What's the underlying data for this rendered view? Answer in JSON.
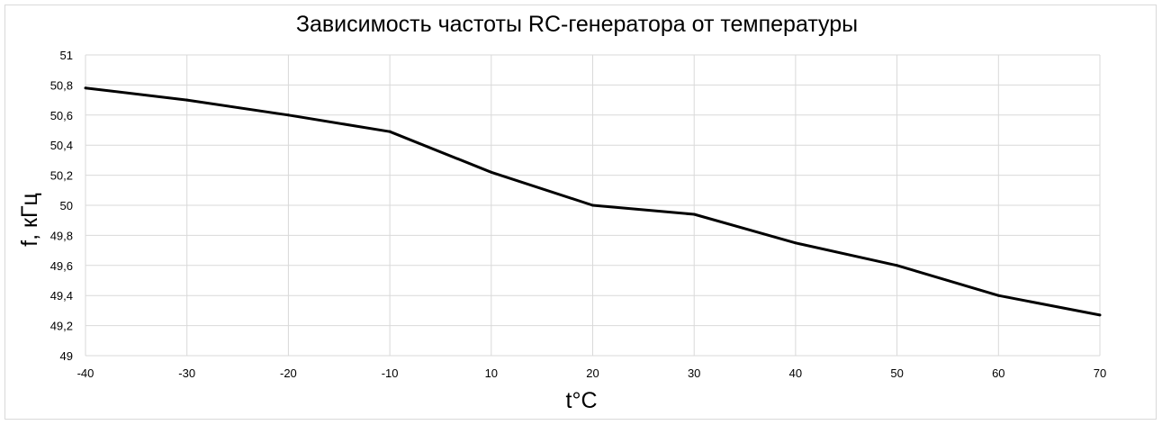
{
  "chart_data": {
    "type": "line",
    "title": "Зависимость частоты RC-генератора от температуры",
    "xlabel": "t°C",
    "ylabel": "f, кГц",
    "x": [
      -40,
      -30,
      -20,
      -10,
      10,
      20,
      30,
      40,
      50,
      60,
      70
    ],
    "x_tick_labels": [
      "-40",
      "-30",
      "-20",
      "-10",
      "10",
      "20",
      "30",
      "40",
      "50",
      "60",
      "70"
    ],
    "y_tick_labels": [
      "51",
      "50,8",
      "50,6",
      "50,4",
      "50,2",
      "50",
      "49,8",
      "49,6",
      "49,4",
      "49,2",
      "49"
    ],
    "y_ticks": [
      51,
      50.8,
      50.6,
      50.4,
      50.2,
      50,
      49.8,
      49.6,
      49.4,
      49.2,
      49
    ],
    "ylim": [
      49,
      51
    ],
    "series": [
      {
        "values": [
          50.78,
          50.7,
          50.6,
          50.49,
          50.22,
          50.0,
          49.94,
          49.75,
          49.6,
          49.4,
          49.27
        ]
      }
    ],
    "grid": true,
    "line_color": "#000000",
    "grid_color": "#d9d9d9"
  }
}
